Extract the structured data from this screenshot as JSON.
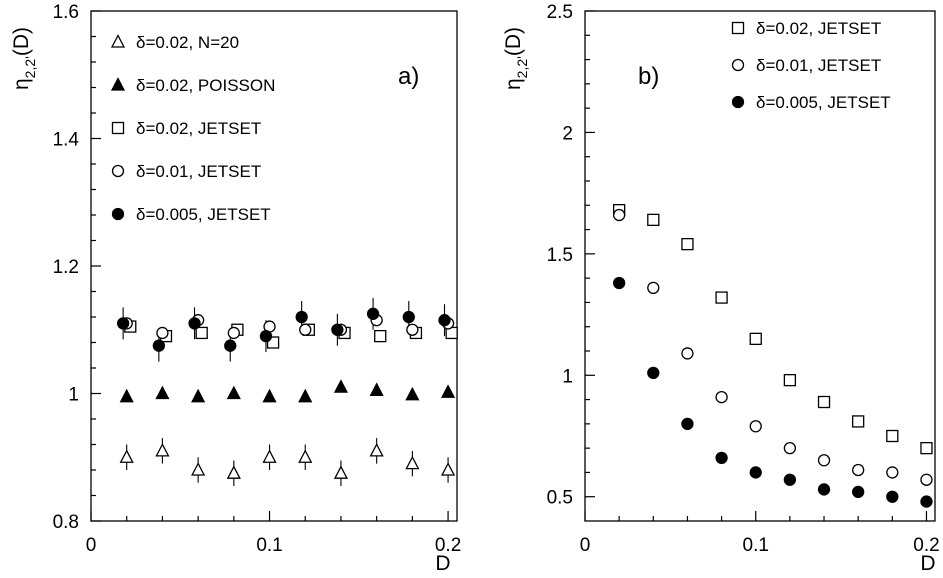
{
  "chart_data": [
    {
      "panel_label": "a)",
      "type": "scatter",
      "ylabel_main": "η",
      "ylabel_sub": "2,2'",
      "ylabel_tail": "(D)",
      "xlabel": "D",
      "xlim": [
        0,
        0.205
      ],
      "ylim": [
        0.8,
        1.6
      ],
      "xticks": [
        0,
        0.1,
        0.2
      ],
      "xtick_labels": [
        "0",
        "0.1",
        "0.2"
      ],
      "yticks": [
        0.8,
        1.0,
        1.2,
        1.4,
        1.6
      ],
      "ytick_labels": [
        "0.8",
        "1",
        "1.2",
        "1.4",
        "1.6"
      ],
      "legend_placement": "top-left",
      "series": [
        {
          "name": "δ=0.02, N=20",
          "marker": "triangle-open",
          "x": [
            0.02,
            0.04,
            0.06,
            0.08,
            0.1,
            0.12,
            0.14,
            0.16,
            0.18,
            0.2
          ],
          "y": [
            0.9,
            0.91,
            0.88,
            0.875,
            0.9,
            0.9,
            0.875,
            0.91,
            0.89,
            0.88
          ],
          "err": [
            0.02,
            0.02,
            0.02,
            0.02,
            0.02,
            0.02,
            0.02,
            0.02,
            0.02,
            0.02
          ]
        },
        {
          "name": "δ=0.02, POISSON",
          "marker": "triangle-filled",
          "x": [
            0.02,
            0.04,
            0.06,
            0.08,
            0.1,
            0.12,
            0.14,
            0.16,
            0.18,
            0.2
          ],
          "y": [
            0.995,
            1.0,
            0.995,
            1.0,
            0.995,
            0.995,
            1.01,
            1.005,
            0.998,
            1.002
          ],
          "err": []
        },
        {
          "name": "δ=0.02, JETSET",
          "marker": "square-open",
          "x": [
            0.022,
            0.042,
            0.062,
            0.082,
            0.102,
            0.122,
            0.142,
            0.162,
            0.182,
            0.202
          ],
          "y": [
            1.105,
            1.09,
            1.095,
            1.1,
            1.08,
            1.1,
            1.095,
            1.09,
            1.095,
            1.095
          ],
          "err": []
        },
        {
          "name": "δ=0.01, JETSET",
          "marker": "circle-open",
          "x": [
            0.02,
            0.04,
            0.06,
            0.08,
            0.1,
            0.12,
            0.14,
            0.16,
            0.18,
            0.2
          ],
          "y": [
            1.11,
            1.095,
            1.115,
            1.095,
            1.105,
            1.1,
            1.1,
            1.115,
            1.1,
            1.11
          ],
          "err": []
        },
        {
          "name": "δ=0.005, JETSET",
          "marker": "circle-filled",
          "x": [
            0.018,
            0.038,
            0.058,
            0.078,
            0.098,
            0.118,
            0.138,
            0.158,
            0.178,
            0.198
          ],
          "y": [
            1.11,
            1.075,
            1.11,
            1.075,
            1.09,
            1.12,
            1.1,
            1.125,
            1.12,
            1.115
          ],
          "err": [
            0.025,
            0.025,
            0.025,
            0.025,
            0.025,
            0.025,
            0.025,
            0.025,
            0.025,
            0.025
          ]
        }
      ]
    },
    {
      "panel_label": "b)",
      "type": "scatter",
      "ylabel_main": "η",
      "ylabel_sub": "2,2'",
      "ylabel_tail": "(D)",
      "xlabel": "D",
      "xlim": [
        0,
        0.205
      ],
      "ylim": [
        0.4,
        2.5
      ],
      "xticks": [
        0,
        0.1,
        0.2
      ],
      "xtick_labels": [
        "0",
        "0.1",
        "0.2"
      ],
      "yticks": [
        0.5,
        1.0,
        1.5,
        2.0,
        2.5
      ],
      "ytick_labels": [
        "0.5",
        "1",
        "1.5",
        "2",
        "2.5"
      ],
      "legend_placement": "top-right",
      "series": [
        {
          "name": "δ=0.02, JETSET",
          "marker": "square-open",
          "x": [
            0.02,
            0.04,
            0.06,
            0.08,
            0.1,
            0.12,
            0.14,
            0.16,
            0.18,
            0.2
          ],
          "y": [
            1.68,
            1.64,
            1.54,
            1.32,
            1.15,
            0.98,
            0.89,
            0.81,
            0.75,
            0.7
          ],
          "err": []
        },
        {
          "name": "δ=0.01, JETSET",
          "marker": "circle-open",
          "x": [
            0.02,
            0.04,
            0.06,
            0.08,
            0.1,
            0.12,
            0.14,
            0.16,
            0.18,
            0.2
          ],
          "y": [
            1.66,
            1.36,
            1.09,
            0.91,
            0.79,
            0.7,
            0.65,
            0.61,
            0.6,
            0.57
          ],
          "err": []
        },
        {
          "name": "δ=0.005, JETSET",
          "marker": "circle-filled",
          "x": [
            0.02,
            0.04,
            0.06,
            0.08,
            0.1,
            0.12,
            0.14,
            0.16,
            0.18,
            0.2
          ],
          "y": [
            1.38,
            1.01,
            0.8,
            0.66,
            0.6,
            0.57,
            0.53,
            0.52,
            0.5,
            0.48
          ],
          "err": []
        }
      ]
    }
  ]
}
